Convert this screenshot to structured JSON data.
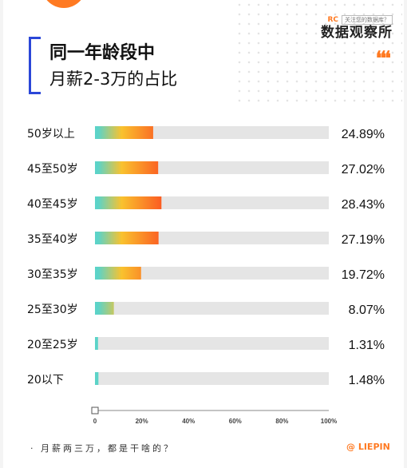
{
  "header": {
    "title": "同一年龄段中",
    "subtitle": "月薪2-3万的占比",
    "logo_tag": "关注您的数据库？",
    "logo_mark": "RC",
    "logo_name": "数据观察所",
    "quote_mark": "❛❛❛"
  },
  "chart_data": {
    "type": "bar",
    "orientation": "horizontal",
    "categories": [
      "50岁以上",
      "45至50岁",
      "40至45岁",
      "35至40岁",
      "30至35岁",
      "25至30岁",
      "20至25岁",
      "20以下"
    ],
    "values": [
      24.89,
      27.02,
      28.43,
      27.19,
      19.72,
      8.07,
      1.31,
      1.48
    ],
    "value_labels": [
      "24.89%",
      "27.02%",
      "28.43%",
      "27.19%",
      "19.72%",
      "8.07%",
      "1.31%",
      "1.48%"
    ],
    "xlim": [
      0,
      100
    ],
    "x_ticks": [
      "0",
      "20%",
      "40%",
      "60%",
      "80%",
      "100%"
    ],
    "track_color": "#e5e5e5",
    "bar_gradient": [
      "#5cd3c8",
      "#f9c22e",
      "#fb5c22"
    ]
  },
  "footer": {
    "left": "· 月薪两三万，都是干啥的？",
    "right": "@ LIEPIN"
  }
}
